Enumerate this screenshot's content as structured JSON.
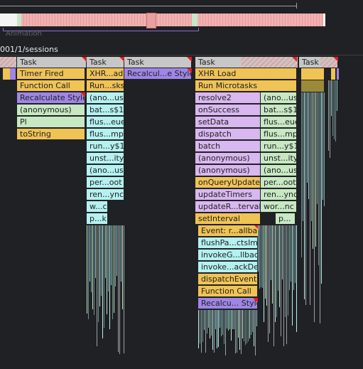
{
  "overview": {
    "animation_label": "Animation"
  },
  "track": {
    "label": "001/1/sessions"
  },
  "tasks": [
    "Task",
    "Task",
    "Task",
    "Task",
    "Task"
  ],
  "col1": [
    "Timer Fired",
    "Function Call",
    "Recalculate Style",
    "(anonymous)",
    "Pl",
    "toString"
  ],
  "col2": [
    "XHR...ad",
    "Run...sks",
    "(ano...us)",
    "bat...s$1",
    "flus...eue",
    "flus...mpl",
    "run...y$1",
    "unst...ity",
    "(ano...us)",
    "per...oot",
    "ren...ync",
    "w...c",
    "p...k"
  ],
  "col3": [
    "Recalcul...e Style"
  ],
  "col4": [
    "XHR Load",
    "Run Microtasks",
    "resolve2",
    "onSuccess",
    "setData",
    "dispatch",
    "batch",
    "(anonymous)",
    "(anonymous)",
    "onQueryUpdate",
    "updateTimers",
    "updateR...terval",
    "setInterval",
    "Event: r...allback",
    "flushPa...ctsImpl",
    "invokeG...llback",
    "invoke...ackDev",
    "dispatchEvent",
    "Function Call",
    "Recalcu... Style"
  ],
  "col5": [
    "(ano...us)",
    "bat...s$1",
    "flus...eue",
    "flus...mpl",
    "run...y$1",
    "unst...ity",
    "(ano...us)",
    "per...oot",
    "ren...ync",
    "wor...nc",
    "p..."
  ]
}
